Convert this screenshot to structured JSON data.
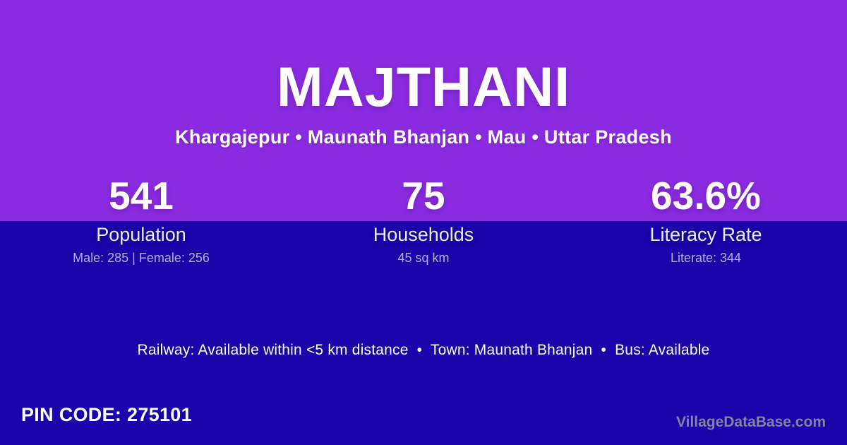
{
  "header": {
    "title": "MAJTHANI",
    "subtitle": "Khargajepur • Maunath Bhanjan • Mau • Uttar Pradesh"
  },
  "stats": [
    {
      "value": "541",
      "label": "Population",
      "detail": "Male: 285 | Female: 256"
    },
    {
      "value": "75",
      "label": "Households",
      "detail": "45 sq km"
    },
    {
      "value": "63.6%",
      "label": "Literacy Rate",
      "detail": "Literate: 344"
    }
  ],
  "amenities": {
    "line": "Railway: Available within <5 km distance  •  Town: Maunath Bhanjan  •  Bus: Available"
  },
  "footer": {
    "pin_code": "PIN CODE: 275101",
    "watermark": "VillageDataBase.com"
  },
  "colors": {
    "top_background": "#8A2BE2",
    "bottom_background": "#1B04A9",
    "primary_text": "#FFFFFF",
    "detail_text": "#B6ADE2",
    "watermark_text": "#83839B"
  }
}
